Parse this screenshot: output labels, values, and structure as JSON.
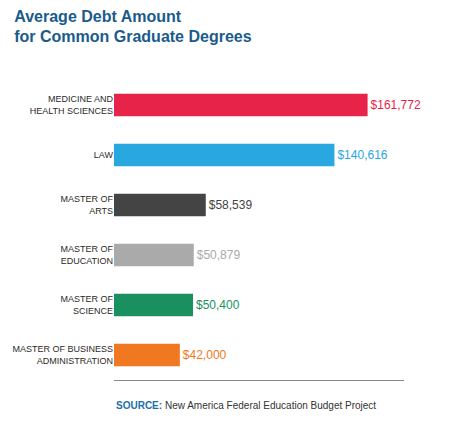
{
  "chart_data": {
    "type": "bar",
    "orientation": "horizontal",
    "title": "Average Debt Amount\nfor Common Graduate Degrees",
    "categories": [
      "MASTER OF BUSINESS\nADMINISTRATION",
      "MASTER OF\nSCIENCE",
      "MASTER OF\nEDUCATION",
      "MASTER OF\nARTS",
      "LAW",
      "MEDICINE AND\nHEALTH SCIENCES"
    ],
    "values": [
      42000,
      50400,
      50879,
      58539,
      140616,
      161772
    ],
    "value_labels": [
      "$42,000",
      "$50,400",
      "$50,879",
      "$58,539",
      "$140,616",
      "$161,772"
    ],
    "colors": [
      "#f07820",
      "#1a9060",
      "#aaaaaa",
      "#444444",
      "#29a8e0",
      "#e8234a"
    ],
    "data_labels": true,
    "xlim": [
      0,
      185000
    ],
    "grid": false,
    "tick_labels": "y",
    "annotations": [
      "SOURCE:",
      "New America Federal Education Budget Project"
    ]
  }
}
